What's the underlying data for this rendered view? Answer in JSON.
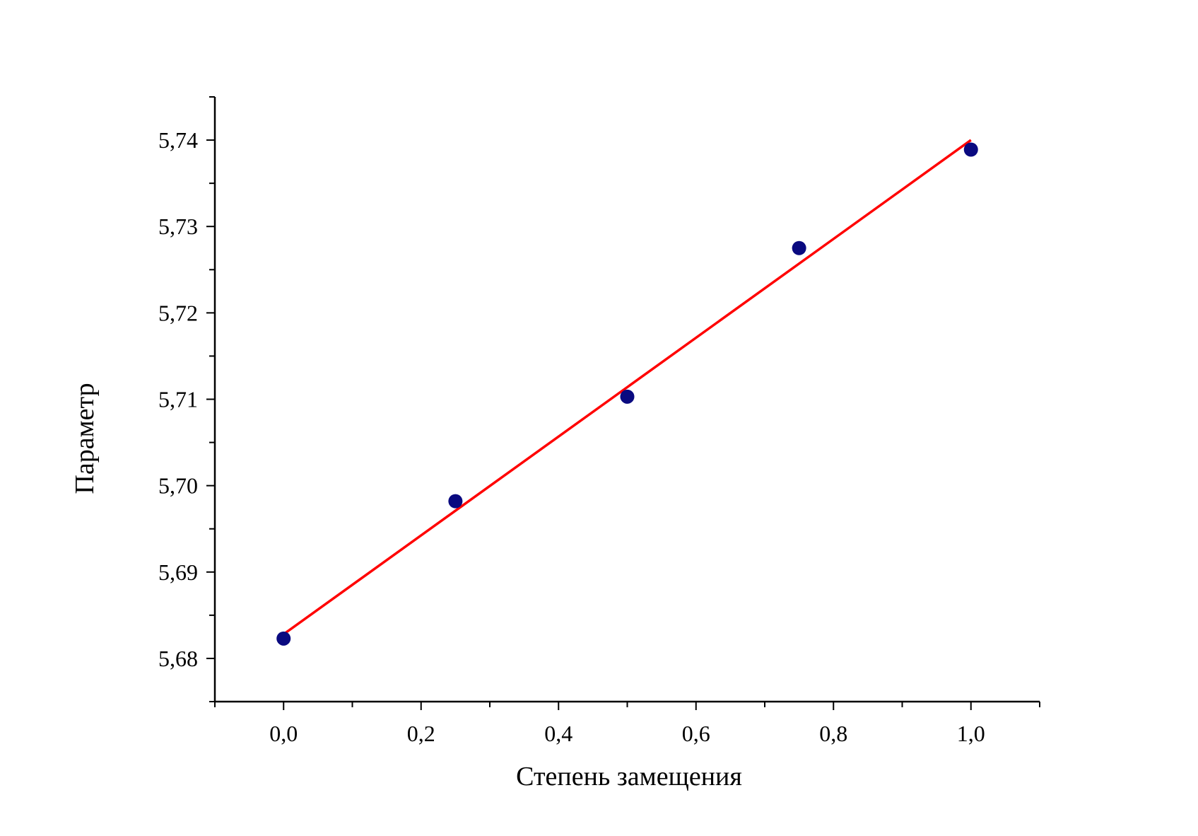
{
  "chart_data": {
    "type": "scatter",
    "xlabel": "Степень замещения",
    "ylabel": "Параметр",
    "xlim": [
      -0.1,
      1.1
    ],
    "ylim": [
      5.675,
      5.745
    ],
    "x_ticks": [
      0.0,
      0.2,
      0.4,
      0.6,
      0.8,
      1.0
    ],
    "x_tick_labels": [
      "0,0",
      "0,2",
      "0,4",
      "0,6",
      "0,8",
      "1,0"
    ],
    "y_ticks": [
      5.68,
      5.69,
      5.7,
      5.71,
      5.72,
      5.73,
      5.74
    ],
    "y_tick_labels": [
      "5,68",
      "5,69",
      "5,70",
      "5,71",
      "5,72",
      "5,73",
      "5,74"
    ],
    "grid": false,
    "series": [
      {
        "type": "scatter",
        "color": "#0a0a80",
        "x": [
          0.0,
          0.25,
          0.5,
          0.75,
          1.0
        ],
        "y": [
          5.6823,
          5.6982,
          5.7103,
          5.7275,
          5.7389
        ]
      },
      {
        "type": "line",
        "color": "#ff0000",
        "x": [
          0.0,
          1.0
        ],
        "y": [
          5.6828,
          5.74
        ]
      }
    ]
  }
}
